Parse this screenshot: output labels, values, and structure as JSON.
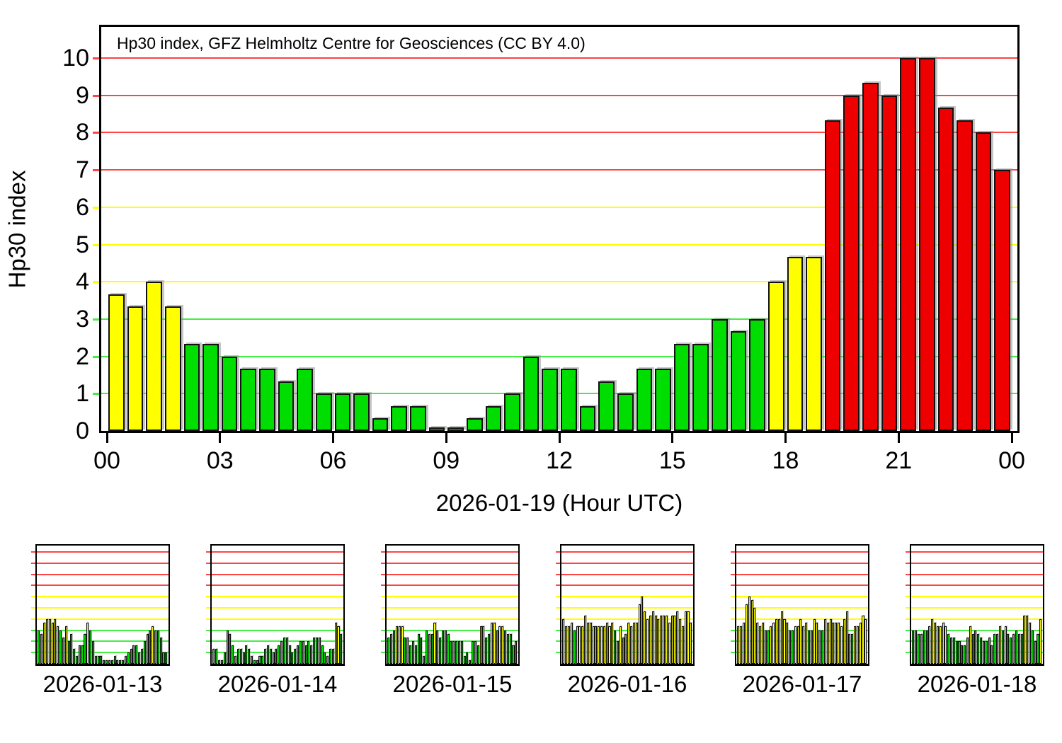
{
  "title": "Hp30 index, GFZ Helmholtz Centre for Geosciences (CC BY 4.0)",
  "colors": {
    "bar_green": "#00dd00",
    "bar_yellow": "#ffff00",
    "bar_red": "#ee0000",
    "grid_green": "#44ee44",
    "grid_yellow": "#ffff00",
    "grid_red": "#ff4444"
  },
  "chart_data": {
    "type": "bar",
    "main": {
      "title": "Hp30 index, GFZ Helmholtz Centre for Geosciences (CC BY 4.0)",
      "xlabel": "2026-01-19 (Hour UTC)",
      "ylabel": "Hp30 index",
      "x_ticks": [
        "00",
        "03",
        "06",
        "09",
        "12",
        "15",
        "18",
        "21",
        "00"
      ],
      "y_ticks": [
        0,
        1,
        2,
        3,
        4,
        5,
        6,
        7,
        8,
        9,
        10
      ],
      "ylim": [
        0,
        10.9
      ],
      "grid": "horizontal",
      "bar_interval_hours": 0.5,
      "values": [
        3.667,
        3.333,
        4.0,
        3.333,
        2.333,
        2.333,
        2.0,
        1.667,
        1.667,
        1.333,
        1.667,
        1.0,
        1.0,
        1.0,
        0.333,
        0.667,
        0.667,
        0.0,
        0.0,
        0.333,
        0.667,
        1.0,
        2.0,
        1.667,
        1.667,
        0.667,
        1.333,
        1.0,
        1.667,
        1.667,
        2.333,
        2.333,
        3.0,
        2.667,
        3.0,
        4.0,
        4.667,
        4.667,
        8.333,
        9.0,
        9.333,
        9.0,
        10.0,
        10.0,
        8.667,
        8.333,
        8.0,
        7.0
      ]
    },
    "thresholds": {
      "yellow_min": 3.333,
      "red_min": 6.667
    },
    "thumbnails": [
      {
        "date": "2026-01-13",
        "values": [
          3.0,
          2.667,
          3.667,
          4.0,
          4.0,
          3.667,
          4.0,
          3.333,
          3.0,
          2.333,
          3.333,
          2.0,
          2.667,
          1.333,
          0.667,
          1.667,
          1.667,
          2.667,
          3.667,
          3.0,
          2.0,
          0.667,
          0.667,
          0.667,
          0.333,
          0.333,
          0.333,
          0.333,
          0.667,
          0.333,
          0.333,
          0.333,
          0.667,
          1.0,
          1.333,
          1.667,
          1.667,
          1.0,
          1.333,
          2.0,
          2.667,
          3.0,
          3.333,
          3.0,
          3.0,
          2.333,
          1.0,
          1.0
        ]
      },
      {
        "date": "2026-01-14",
        "values": [
          1.333,
          1.333,
          0.333,
          0.333,
          1.0,
          3.0,
          2.667,
          1.667,
          0.667,
          1.333,
          1.333,
          1.0,
          1.667,
          1.333,
          0.667,
          0.333,
          0.333,
          0.667,
          0.667,
          1.333,
          1.667,
          1.333,
          1.0,
          1.333,
          1.667,
          2.0,
          2.333,
          2.333,
          1.667,
          1.0,
          1.333,
          1.667,
          2.0,
          2.0,
          1.667,
          2.0,
          1.667,
          2.333,
          2.333,
          2.333,
          1.667,
          1.0,
          0.667,
          1.333,
          1.333,
          3.667,
          3.333,
          2.667
        ]
      },
      {
        "date": "2026-01-15",
        "values": [
          2.333,
          2.667,
          3.0,
          3.333,
          3.333,
          3.333,
          2.333,
          2.333,
          1.667,
          2.0,
          1.667,
          2.667,
          2.333,
          0.667,
          3.0,
          2.667,
          2.667,
          3.667,
          3.0,
          2.333,
          3.0,
          3.0,
          2.667,
          2.0,
          2.0,
          2.0,
          2.0,
          2.0,
          0.667,
          1.0,
          0.333,
          2.0,
          2.0,
          1.667,
          3.333,
          3.333,
          2.333,
          2.667,
          3.667,
          3.667,
          3.0,
          3.333,
          3.333,
          3.0,
          2.667,
          2.667,
          1.667,
          2.0
        ]
      },
      {
        "date": "2026-01-16",
        "values": [
          4.0,
          3.333,
          3.333,
          3.667,
          3.0,
          3.333,
          3.333,
          3.333,
          4.333,
          3.667,
          3.667,
          3.333,
          3.333,
          3.333,
          3.333,
          3.333,
          3.667,
          3.333,
          3.667,
          3.0,
          2.0,
          3.333,
          2.333,
          2.667,
          3.667,
          3.333,
          3.667,
          3.667,
          5.333,
          6.0,
          4.667,
          4.0,
          4.333,
          4.667,
          4.333,
          4.0,
          4.333,
          4.333,
          4.333,
          3.667,
          4.333,
          4.333,
          4.667,
          4.0,
          3.333,
          4.667,
          4.667,
          3.667
        ]
      },
      {
        "date": "2026-01-17",
        "values": [
          3.333,
          3.333,
          3.667,
          5.333,
          6.0,
          5.667,
          5.0,
          3.667,
          3.333,
          3.667,
          3.0,
          3.0,
          3.333,
          3.667,
          4.0,
          4.0,
          4.667,
          4.0,
          3.667,
          3.0,
          3.0,
          3.333,
          3.333,
          4.0,
          3.333,
          3.667,
          3.0,
          3.0,
          4.0,
          3.667,
          3.0,
          3.0,
          4.0,
          3.667,
          4.0,
          3.667,
          3.667,
          3.667,
          3.333,
          4.0,
          4.667,
          2.667,
          2.667,
          3.333,
          3.333,
          3.667,
          4.333,
          4.0
        ]
      },
      {
        "date": "2026-01-18",
        "values": [
          3.0,
          3.0,
          2.667,
          2.667,
          3.0,
          3.0,
          3.333,
          4.0,
          3.667,
          3.333,
          3.333,
          3.667,
          3.333,
          2.667,
          2.333,
          2.333,
          2.0,
          2.0,
          1.667,
          1.667,
          2.333,
          3.333,
          2.667,
          3.0,
          2.667,
          2.333,
          2.0,
          2.0,
          2.333,
          1.667,
          2.667,
          2.667,
          3.333,
          3.0,
          3.333,
          2.667,
          2.333,
          2.667,
          3.0,
          2.667,
          2.667,
          4.333,
          4.333,
          3.667,
          3.0,
          2.0,
          2.667,
          4.0
        ]
      }
    ]
  }
}
